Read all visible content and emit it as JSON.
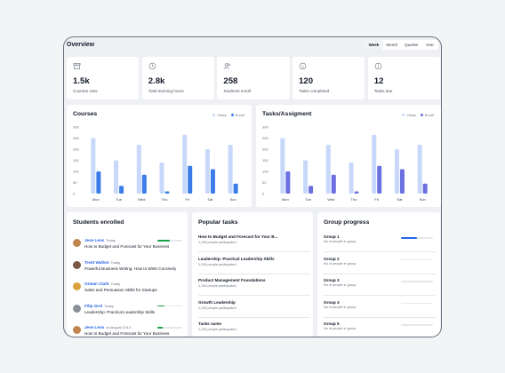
{
  "header": {
    "title": "Overview",
    "tabs": [
      {
        "label": "Week"
      },
      {
        "label": "Month"
      },
      {
        "label": "Quarter"
      },
      {
        "label": "Year"
      }
    ]
  },
  "stats": [
    {
      "value": "1.5k",
      "label": "Courses view",
      "icon": "archive-icon"
    },
    {
      "value": "2.8k",
      "label": "Total learning hours",
      "icon": "clock-icon"
    },
    {
      "value": "258",
      "label": "Students enroll",
      "icon": "users-icon"
    },
    {
      "value": "120",
      "label": "Tasks completed",
      "icon": "smile-icon"
    },
    {
      "value": "12",
      "label": "Tasks due",
      "icon": "info-icon"
    }
  ],
  "charts": {
    "courses_title": "Courses",
    "tasks_title": "Tasks/Assigment",
    "legend_views": "Views",
    "legend_enroll": "Enroll",
    "colors": {
      "views": "#c7d8fb",
      "enroll_courses": "#3b7de8",
      "enroll_tasks": "#6b6fe0"
    }
  },
  "chart_data": [
    {
      "type": "bar",
      "title": "Courses",
      "categories": [
        "Mon",
        "Tue",
        "Wed",
        "Thu",
        "Fri",
        "Sat",
        "Sun"
      ],
      "ylim": [
        0,
        300
      ],
      "yticks": [
        0,
        50,
        100,
        150,
        200,
        250,
        300
      ],
      "series": [
        {
          "name": "Views",
          "values": [
            250,
            150,
            220,
            140,
            265,
            200,
            220
          ]
        },
        {
          "name": "Enroll",
          "values": [
            100,
            35,
            85,
            10,
            125,
            110,
            45
          ]
        }
      ],
      "legend": "top-right"
    },
    {
      "type": "bar",
      "title": "Tasks/Assigment",
      "categories": [
        "Mon",
        "Tue",
        "Wed",
        "Thu",
        "Fri",
        "Sat",
        "Sun"
      ],
      "ylim": [
        0,
        300
      ],
      "yticks": [
        0,
        50,
        100,
        150,
        200,
        250,
        300
      ],
      "series": [
        {
          "name": "Views",
          "values": [
            250,
            150,
            220,
            140,
            265,
            200,
            220
          ]
        },
        {
          "name": "Enroll",
          "values": [
            100,
            35,
            85,
            10,
            125,
            110,
            45
          ]
        }
      ],
      "legend": "top-right"
    }
  ],
  "students": {
    "title": "Students enrolled",
    "rows": [
      {
        "name": "Jese Leos",
        "when": "Today",
        "course": "How to Budget and Forecast for Your Business",
        "progress": 0.5,
        "avatar_color": "#c0844f"
      },
      {
        "name": "Trent Walton",
        "when": "Today",
        "course": "Powerful Business Writing: How to Write Concisely",
        "progress": null,
        "avatar_color": "#7a5a44"
      },
      {
        "name": "Orman Clark",
        "when": "Today",
        "course": "Sales and Persuasion Skills for Startups",
        "progress": null,
        "avatar_color": "#d9a23a"
      },
      {
        "name": "Filip Grol",
        "when": "Today",
        "course": "Leadership: Practical Leadership Skills",
        "progress": 0.3,
        "avatar_color": "#8a9099"
      },
      {
        "name": "Jese Leos",
        "when": "on August 2014",
        "course": "How to Budget and Forecast for Your Business",
        "progress": 0.2,
        "avatar_color": "#c0844f"
      }
    ]
  },
  "tasks": {
    "title": "Popular tasks",
    "rows": [
      {
        "name": "How to Budget and Forecast for Your B...",
        "sub": "1,245 people participated"
      },
      {
        "name": "Leadership: Practical Leadership Skills",
        "sub": "1,245 people participated"
      },
      {
        "name": "Product Management Foundations",
        "sub": "1,245 people participated"
      },
      {
        "name": "Growth Leadership",
        "sub": "1,245 people participated"
      },
      {
        "name": "Tasks name",
        "sub": "1,245 people participated"
      }
    ]
  },
  "groups": {
    "title": "Group progress",
    "rows": [
      {
        "name": "Group 1",
        "sub": "No of people in group",
        "progress": 0.5
      },
      {
        "name": "Group 2",
        "sub": "No of people in group",
        "progress": 0
      },
      {
        "name": "Group 3",
        "sub": "No of people in group",
        "progress": 0
      },
      {
        "name": "Group 4",
        "sub": "No of people in group",
        "progress": 0
      },
      {
        "name": "Group 5",
        "sub": "No of people in group",
        "progress": 0
      }
    ]
  }
}
